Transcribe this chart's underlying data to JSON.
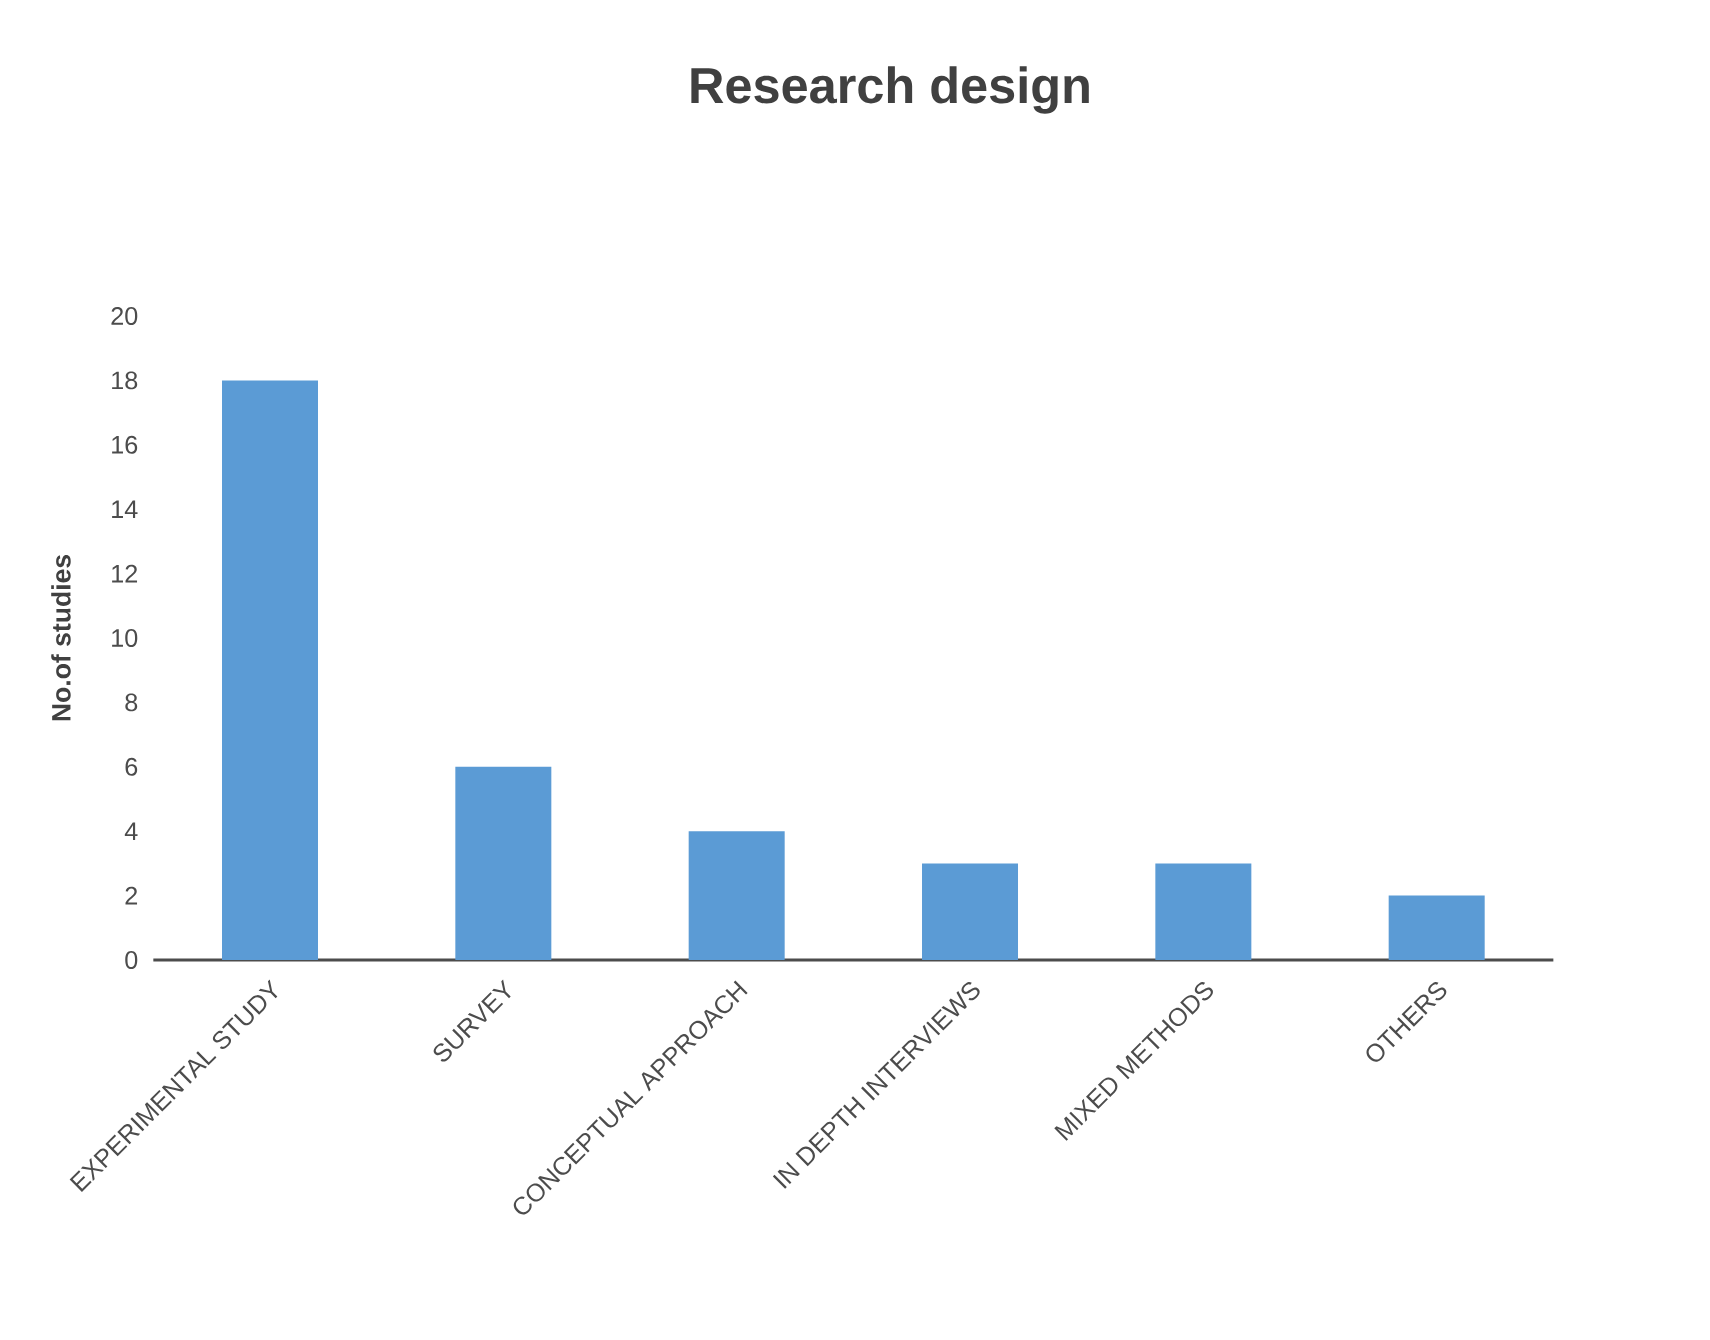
{
  "chart_data": {
    "type": "bar",
    "title": "Research design",
    "ylabel": "No.of studies",
    "categories": [
      "EXPERIMENTAL STUDY",
      "SURVEY",
      "CONCEPTUAL APPROACH",
      "IN DEPTH INTERVIEWS",
      "MIXED METHODS",
      "OTHERS"
    ],
    "values": [
      18,
      6,
      4,
      3,
      3,
      2
    ],
    "color": "#5b9bd5",
    "ylim": [
      0,
      20
    ],
    "yticks": [
      0,
      2,
      4,
      6,
      8,
      10,
      12,
      14,
      16,
      18,
      20
    ]
  }
}
